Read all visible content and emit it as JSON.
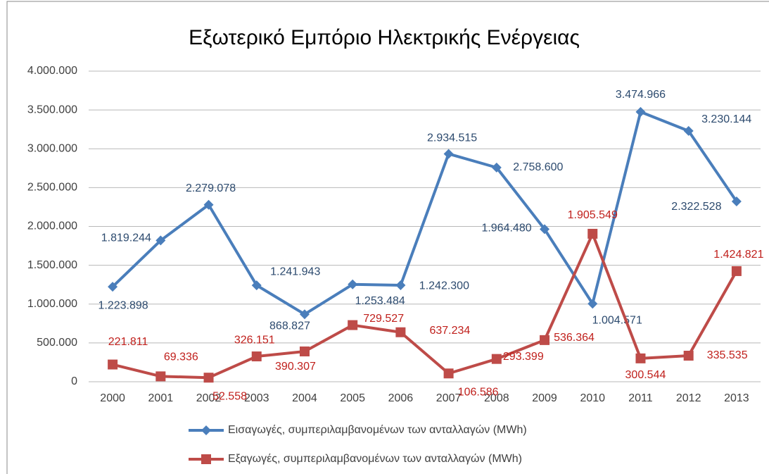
{
  "chart_data": {
    "type": "line",
    "title": "Εξωτερικό Εμπόριο Ηλεκτρικής Ενέργειας",
    "categories": [
      "2000",
      "2001",
      "2002",
      "2003",
      "2004",
      "2005",
      "2006",
      "2007",
      "2008",
      "2009",
      "2010",
      "2011",
      "2012",
      "2013"
    ],
    "ylim": [
      0,
      4000000
    ],
    "yticks": [
      0,
      {
        "value": 500000,
        "label": "500.000"
      },
      {
        "value": 1000000,
        "label": "1.000.000"
      },
      {
        "value": 1500000,
        "label": "1.500.000"
      },
      {
        "value": 2000000,
        "label": "2.000.000"
      },
      {
        "value": 2500000,
        "label": "2.500.000"
      },
      {
        "value": 3000000,
        "label": "3.000.000"
      },
      {
        "value": 3500000,
        "label": "3.500.000"
      },
      {
        "value": 4000000,
        "label": "4.000.000"
      }
    ],
    "grid": true,
    "legend": "bottom",
    "series": [
      {
        "name": "Εισαγωγές, συμπεριλαμβανομένων των ανταλλαγών (MWh)",
        "color": "#4a7ebb",
        "marker": "diamond",
        "values": [
          1223898,
          1819244,
          2279078,
          1241943,
          868827,
          1253484,
          1242300,
          2934515,
          2758600,
          1964480,
          1004571,
          3474966,
          3230144,
          2322528
        ],
        "value_labels": [
          "1.223.898",
          "1.819.244",
          "2.279.078",
          "1.241.943",
          "868.827",
          "1.253.484",
          "1.242.300",
          "2.934.515",
          "2.758.600",
          "1.964.480",
          "1.004.571",
          "3.474.966",
          "3.230.144",
          "2.322.528"
        ]
      },
      {
        "name": "Εξαγωγές, συμπεριλαμβανομένων των ανταλλαγών (MWh)",
        "color": "#be4b48",
        "marker": "square",
        "values": [
          221811,
          69336,
          52558,
          326151,
          390307,
          729527,
          637234,
          106586,
          293399,
          536364,
          1905549,
          300544,
          335535,
          1424821
        ],
        "value_labels": [
          "221.811",
          "69.336",
          "52.558",
          "326.151",
          "390.307",
          "729.527",
          "637.234",
          "106.586",
          "293.399",
          "536.364",
          "1.905.549",
          "300.544",
          "335.535",
          "1.424.821"
        ]
      }
    ]
  }
}
